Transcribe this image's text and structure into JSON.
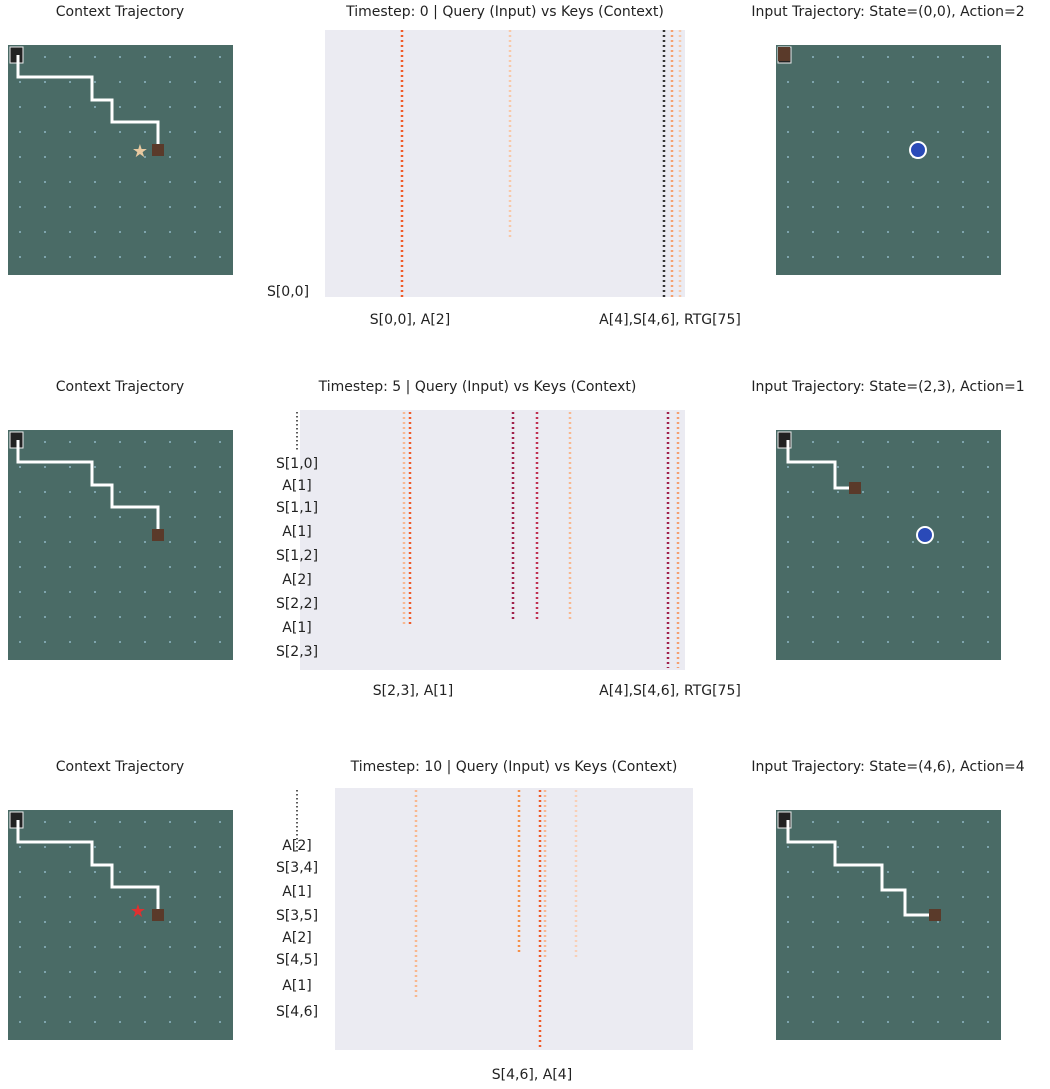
{
  "rows": [
    {
      "left_title": "Context Trajectory",
      "heatmap_title": "Timestep: 0 | Query (Input) vs Keys (Context)",
      "right_title": "Input Trajectory: State=(0,0), Action=2",
      "y_labels": [
        "S[0,0]"
      ],
      "x_labels": [
        "S[0,0], A[2]",
        "A[4],S[4,6], RTG[75]"
      ]
    },
    {
      "left_title": "Context Trajectory",
      "heatmap_title": "Timestep: 5  | Query (Input) vs Keys (Context)",
      "right_title": "Input Trajectory: State=(2,3), Action=1",
      "y_labels": [
        "S[1,0]",
        "A[1]",
        "S[1,1]",
        "A[1]",
        "S[1,2]",
        "A[2]",
        "S[2,2]",
        "A[1]",
        "S[2,3]"
      ],
      "x_labels": [
        "S[2,3], A[1]",
        "A[4],S[4,6], RTG[75]"
      ]
    },
    {
      "left_title": "Context Trajectory",
      "heatmap_title": "Timestep: 10 | Query (Input) vs Keys (Context)",
      "right_title": "Input Trajectory: State=(4,6), Action=4",
      "y_labels": [
        "A[2]",
        "S[3,4]",
        "A[1]",
        "S[3,5]",
        "A[2]",
        "S[4,5]",
        "A[1]",
        "S[4,6]"
      ],
      "x_labels": [
        "S[4,6], A[4]"
      ]
    }
  ]
}
